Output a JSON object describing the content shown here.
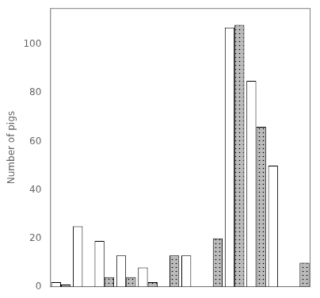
{
  "chart_data": {
    "type": "bar",
    "ylabel": "Number of pigs",
    "categories": [
      null,
      null,
      null,
      null,
      null,
      null,
      null,
      null,
      null,
      null,
      null,
      null
    ],
    "series": [
      {
        "color": "#ffffff",
        "values": [
          2,
          25,
          19,
          13,
          8,
          0,
          13,
          0,
          107,
          85,
          50,
          0
        ]
      },
      {
        "color": "#bbbbbb",
        "values": [
          1,
          0,
          4,
          4,
          2,
          13,
          0,
          20,
          108,
          66,
          0,
          10
        ]
      }
    ],
    "ylim": [
      0,
      115
    ],
    "yticks": [
      0,
      20,
      40,
      60,
      80,
      100
    ],
    "grid": false,
    "tick_labels": "y"
  }
}
